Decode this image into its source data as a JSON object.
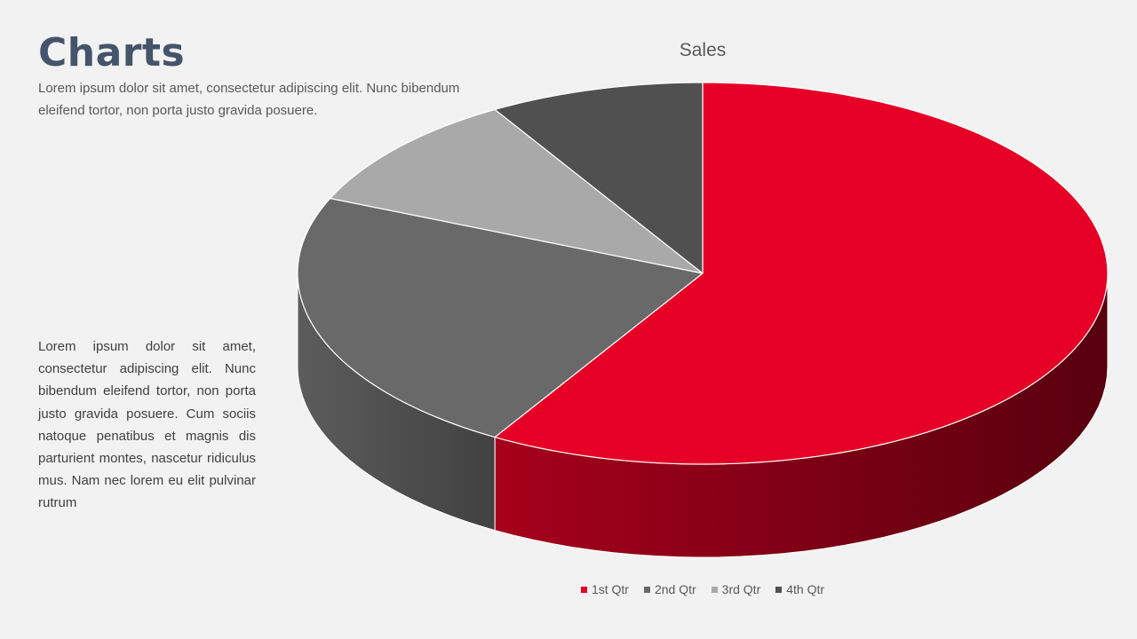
{
  "slide": {
    "title": "Charts",
    "intro": "Lorem ipsum dolor sit amet, consectetur adipiscing elit. Nunc bibendum eleifend tortor, non porta justo gravida posuere.",
    "body": "Lorem ipsum dolor sit amet, consectetur adipiscing elit. Nunc bibendum eleifend tortor, non porta justo gravida posuere. Cum sociis natoque penatibus et magnis dis parturient montes, nascetur ridiculus mus. Nam nec lorem eu elit pulvinar rutrum"
  },
  "chart_data": {
    "type": "pie",
    "style": "3d",
    "title": "Sales",
    "categories": [
      "1st Qtr",
      "2nd Qtr",
      "3rd Qtr",
      "4th Qtr"
    ],
    "values": [
      8.2,
      3.2,
      1.4,
      1.2
    ],
    "colors": [
      "#e60026",
      "#696969",
      "#a9a9a9",
      "#505050"
    ],
    "legend_position": "bottom"
  }
}
